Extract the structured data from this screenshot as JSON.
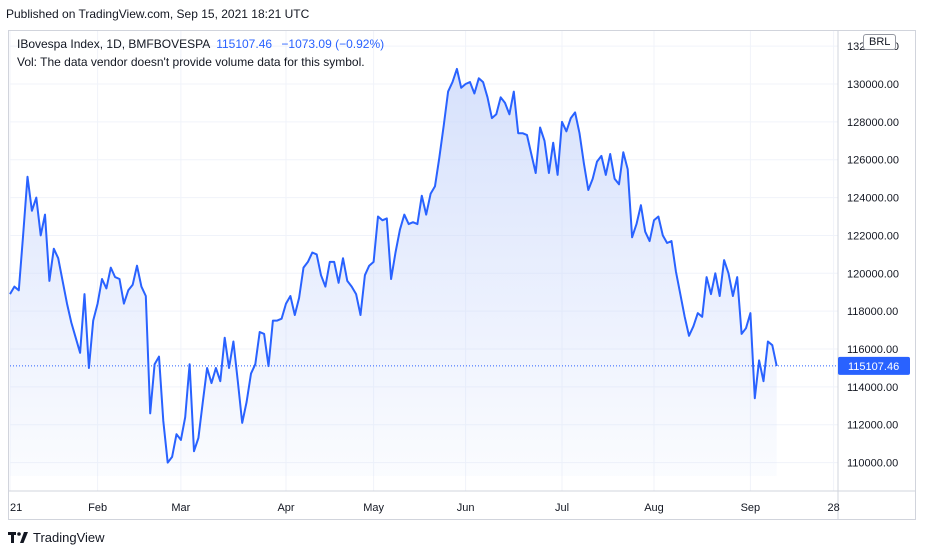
{
  "header": {
    "published": "Published on TradingView.com, Sep 15, 2021 18:21 UTC"
  },
  "legend": {
    "symbol": "IBovespa Index, 1D, BMFBOVESPA",
    "last": "115107.46",
    "change": "−1073.09 (−0.92%)",
    "volume_note": "Vol: The data vendor doesn't provide volume data for this symbol."
  },
  "currency": "BRL",
  "footer": {
    "brand": "TradingView"
  },
  "colors": {
    "line": "#2962ff",
    "fill_top": "#c9d7fb",
    "grid": "#f0f3fa",
    "price_tag": "#2962ff"
  },
  "chart_data": {
    "type": "area",
    "title": "",
    "ylim": [
      108500,
      132800
    ],
    "grid": true,
    "last_price": 115107.46,
    "last_price_label": "115107.46",
    "y_ticks": [
      110000,
      112000,
      114000,
      116000,
      118000,
      120000,
      122000,
      124000,
      126000,
      128000,
      130000,
      132000
    ],
    "y_tick_labels": [
      "110000.00",
      "112000.00",
      "114000.00",
      "116000.00",
      "118000.00",
      "120000.00",
      "122000.00",
      "124000.00",
      "126000.00",
      "128000.00",
      "130000.00",
      "132000.00"
    ],
    "x_ticks": [
      {
        "label": "21",
        "index": 0
      },
      {
        "label": "Feb",
        "index": 20
      },
      {
        "label": "Mar",
        "index": 39
      },
      {
        "label": "Apr",
        "index": 63
      },
      {
        "label": "May",
        "index": 83
      },
      {
        "label": "Jun",
        "index": 104
      },
      {
        "label": "Jul",
        "index": 126
      },
      {
        "label": "Aug",
        "index": 147
      },
      {
        "label": "Sep",
        "index": 169
      },
      {
        "label": "28",
        "index": 188
      }
    ],
    "x_index_max": 189,
    "series": [
      {
        "values": [
          118900,
          119300,
          119100,
          122000,
          125100,
          123300,
          124000,
          122000,
          123100,
          119600,
          121300,
          120800,
          119600,
          118400,
          117400,
          116600,
          115800,
          118900,
          115000,
          117500,
          118400,
          119700,
          119200,
          120300,
          119800,
          119700,
          118400,
          119100,
          119400,
          120400,
          119300,
          118800,
          112600,
          115200,
          115600,
          112200,
          110000,
          110300,
          111500,
          111200,
          112400,
          115200,
          110600,
          111300,
          113200,
          115000,
          114200,
          115000,
          114300,
          116600,
          115000,
          116400,
          114300,
          112100,
          113200,
          114700,
          115200,
          116900,
          116800,
          115100,
          117500,
          117500,
          117600,
          118400,
          118800,
          117800,
          118700,
          120300,
          120600,
          121100,
          121000,
          119900,
          119300,
          120600,
          120600,
          119500,
          120800,
          119600,
          119300,
          118900,
          117800,
          119900,
          120400,
          120600,
          123000,
          122800,
          122900,
          119700,
          121100,
          122300,
          123100,
          122600,
          122700,
          122600,
          124100,
          123100,
          124200,
          124600,
          126100,
          127800,
          129600,
          130100,
          130800,
          129800,
          130000,
          130100,
          129500,
          130300,
          130100,
          129300,
          128200,
          128400,
          129300,
          129000,
          128400,
          129600,
          127400,
          127400,
          127300,
          126300,
          125300,
          127700,
          127000,
          125300,
          126900,
          125200,
          128000,
          127500,
          128200,
          128500,
          127400,
          125800,
          124400,
          125000,
          125900,
          126200,
          125200,
          126300,
          125000,
          124700,
          126400,
          125500,
          121900,
          122600,
          123600,
          122200,
          121700,
          122800,
          123000,
          122000,
          121600,
          121700,
          120100,
          118900,
          117700,
          116700,
          117200,
          117900,
          117700,
          119800,
          118900,
          120000,
          118800,
          120700,
          120000,
          118800,
          119800,
          116800,
          117100,
          117900,
          113400,
          115400,
          114300,
          116400,
          116200,
          115100
        ]
      }
    ]
  }
}
